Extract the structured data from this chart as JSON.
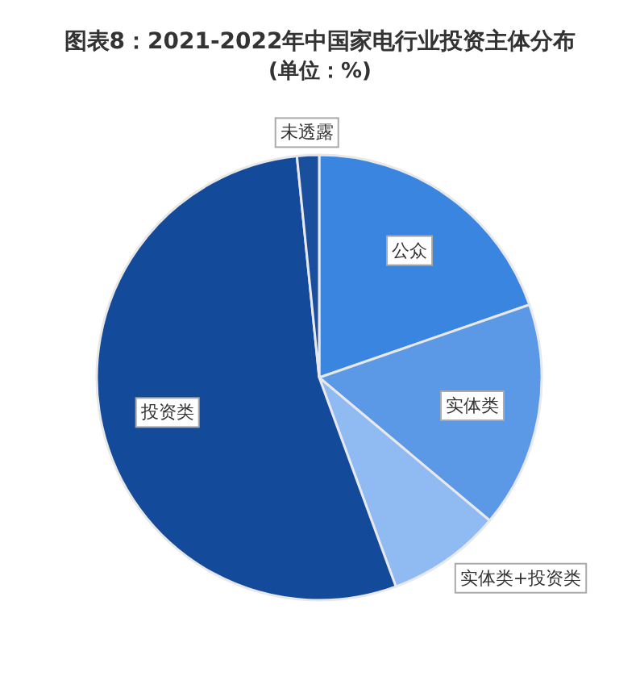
{
  "chart_data": {
    "type": "pie",
    "title": "图表8：2021-2022年中国家电行业投资主体分布",
    "subtitle": "(单位：%)",
    "categories": [
      "公众",
      "实体类",
      "实体类+投资类",
      "投资类",
      "未透露"
    ],
    "values": [
      19.7,
      16.4,
      8.3,
      54.0,
      1.6
    ],
    "colors": [
      "#3a85e0",
      "#5b98e6",
      "#90bbf2",
      "#144a9a",
      "#1a4f9e"
    ]
  }
}
